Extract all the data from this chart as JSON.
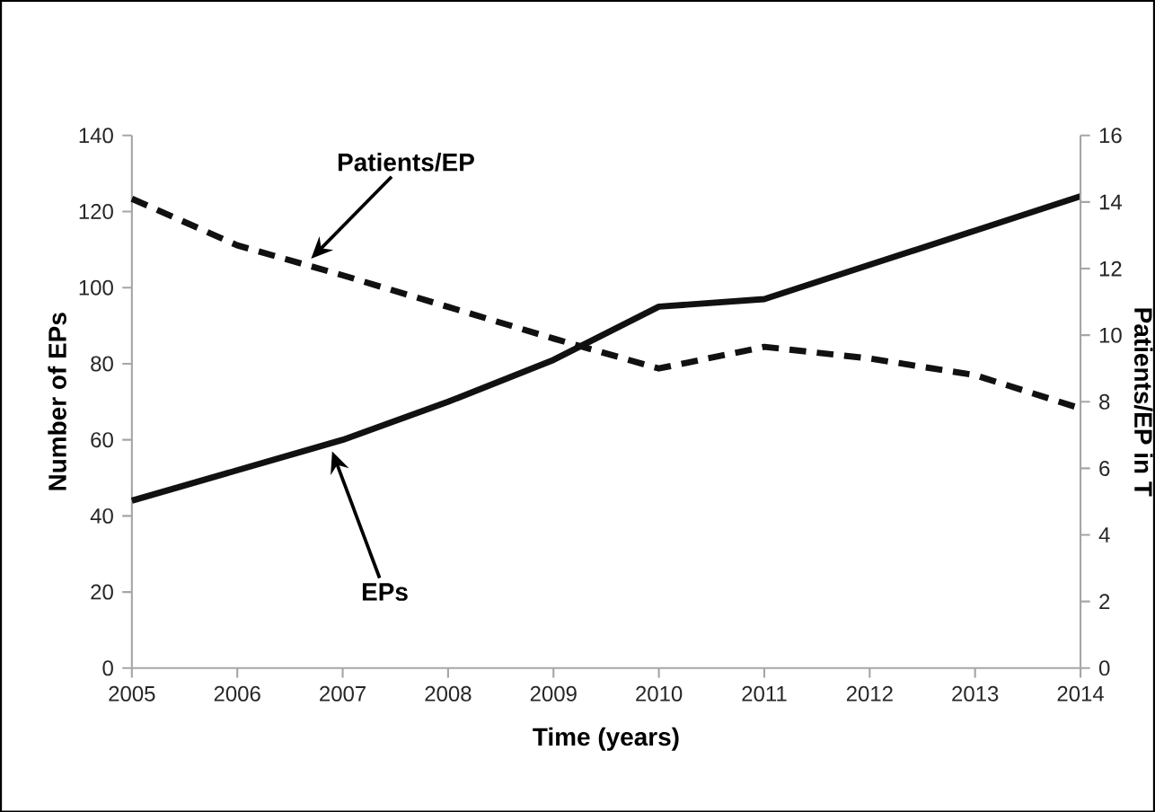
{
  "chart_data": {
    "type": "line",
    "xlabel": "Time (years)",
    "ylabel": "Number of EPs",
    "y2label": "Patients/EP in T",
    "x": [
      2005,
      2006,
      2007,
      2008,
      2009,
      2010,
      2011,
      2012,
      2013,
      2014
    ],
    "series": [
      {
        "name": "EPs",
        "color": "#111111",
        "line_style": "solid",
        "values": [
          44,
          52,
          60,
          70,
          81,
          95,
          97,
          106,
          115,
          124
        ]
      },
      {
        "name": "Patients/EP",
        "color": "#111111",
        "line_style": "dashed",
        "axis": "y2",
        "values": [
          14.1,
          12.7,
          11.8,
          10.85,
          9.9,
          9.0,
          9.65,
          9.3,
          8.8,
          7.8
        ]
      }
    ],
    "xlim": [
      2005,
      2014
    ],
    "xticks": [
      2005,
      2006,
      2007,
      2008,
      2009,
      2010,
      2011,
      2012,
      2013,
      2014
    ],
    "ylim": [
      0,
      140
    ],
    "yticks": [
      0,
      20,
      40,
      60,
      80,
      100,
      120,
      140
    ],
    "y2lim": [
      0,
      16
    ],
    "y2ticks": [
      0,
      2,
      4,
      6,
      8,
      10,
      12,
      14,
      16
    ],
    "marker": "none",
    "grid": false,
    "legend": false
  }
}
